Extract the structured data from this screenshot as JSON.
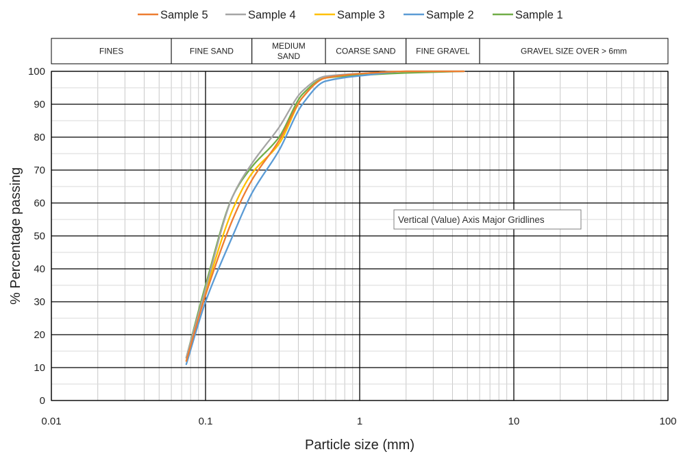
{
  "chart_data": {
    "type": "line",
    "x_scale": "log",
    "xlim": [
      0.01,
      100
    ],
    "ylim": [
      0,
      100
    ],
    "grid": true,
    "legend_position": "top",
    "x_ticks": [
      "0.01",
      "0.1",
      "1",
      "10",
      "100"
    ],
    "y_ticks": [
      "0",
      "10",
      "20",
      "30",
      "40",
      "50",
      "60",
      "70",
      "80",
      "90",
      "100"
    ],
    "xlabel": "Particle size (mm)",
    "ylabel": "% Percentage passing",
    "size_bands": [
      {
        "label": "FINES",
        "from": 0.01,
        "to": 0.06
      },
      {
        "label": "FINE SAND",
        "from": 0.06,
        "to": 0.2
      },
      {
        "label_lines": [
          "MEDIUM",
          "SAND"
        ],
        "from": 0.2,
        "to": 0.6
      },
      {
        "label": "COARSE SAND",
        "from": 0.6,
        "to": 2
      },
      {
        "label": "FINE GRAVEL",
        "from": 2,
        "to": 6
      },
      {
        "label": "GRAVEL SIZE OVER > 6mm",
        "from": 6,
        "to": 100
      }
    ],
    "series": [
      {
        "name": "Sample 5",
        "color": "#ED7D31",
        "points": [
          [
            0.075,
            12
          ],
          [
            0.1,
            32
          ],
          [
            0.15,
            55
          ],
          [
            0.2,
            67
          ],
          [
            0.3,
            79
          ],
          [
            0.425,
            92
          ],
          [
            0.6,
            98
          ],
          [
            1.18,
            99.5
          ],
          [
            2,
            100
          ],
          [
            4.75,
            100
          ]
        ]
      },
      {
        "name": "Sample 4",
        "color": "#A5A5A5",
        "points": [
          [
            0.075,
            13
          ],
          [
            0.1,
            34
          ],
          [
            0.15,
            62
          ],
          [
            0.2,
            72
          ],
          [
            0.3,
            83
          ],
          [
            0.425,
            94
          ],
          [
            0.6,
            98.5
          ],
          [
            1.18,
            99.5
          ],
          [
            2,
            100
          ],
          [
            4.75,
            100
          ]
        ]
      },
      {
        "name": "Sample 3",
        "color": "#FFC000",
        "points": [
          [
            0.075,
            12
          ],
          [
            0.1,
            33
          ],
          [
            0.15,
            58
          ],
          [
            0.2,
            69
          ],
          [
            0.3,
            78
          ],
          [
            0.425,
            92
          ],
          [
            0.6,
            98
          ],
          [
            1.18,
            99.5
          ],
          [
            2,
            100
          ],
          [
            4.75,
            100
          ]
        ]
      },
      {
        "name": "Sample 2",
        "color": "#5B9BD5",
        "points": [
          [
            0.075,
            11
          ],
          [
            0.1,
            30
          ],
          [
            0.15,
            50
          ],
          [
            0.2,
            63
          ],
          [
            0.3,
            76
          ],
          [
            0.425,
            90
          ],
          [
            0.6,
            97
          ],
          [
            1.18,
            99
          ],
          [
            2,
            100
          ],
          [
            4.75,
            100
          ]
        ]
      },
      {
        "name": "Sample 1",
        "color": "#70AD47",
        "points": [
          [
            0.075,
            13
          ],
          [
            0.1,
            35
          ],
          [
            0.15,
            62
          ],
          [
            0.2,
            71
          ],
          [
            0.3,
            80
          ],
          [
            0.425,
            93
          ],
          [
            0.6,
            98
          ],
          [
            1.18,
            99
          ],
          [
            2,
            99.5
          ],
          [
            4.75,
            100
          ]
        ]
      }
    ]
  },
  "tooltip": {
    "text": "Vertical (Value) Axis Major Gridlines"
  }
}
